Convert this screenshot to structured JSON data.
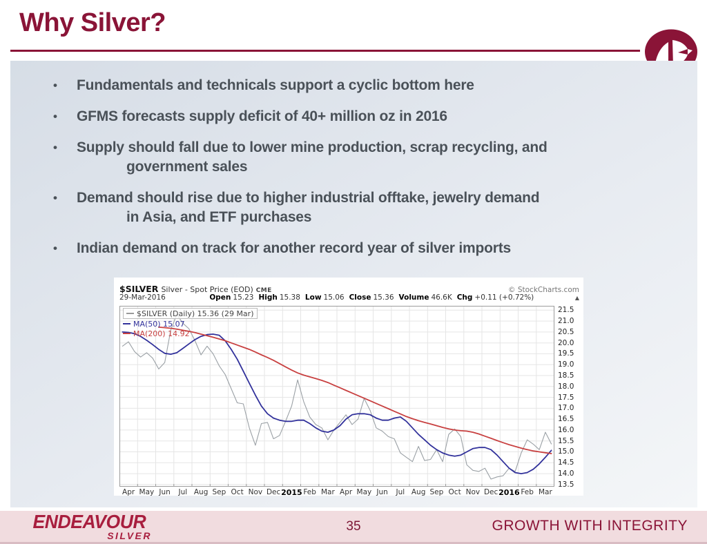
{
  "slide": {
    "title": "Why Silver?",
    "bullets": [
      "Fundamentals and technicals support a cyclic bottom here",
      "GFMS forecasts supply deficit of 40+ million oz in 2016",
      "Supply should fall due to lower mine production, scrap recycling, and\ngovernment sales",
      "Demand should rise due to higher industrial offtake, jewelry demand\nin Asia, and ETF purchases",
      "Indian demand on track for another record year of silver imports"
    ],
    "bullet_glyph": "•",
    "page_number": "35",
    "tagline": "GROWTH WITH INTEGRITY",
    "brand": {
      "line1": "ENDEAVOUR",
      "line2": "SILVER"
    }
  },
  "colors": {
    "maroon": "#8a1437",
    "brand_crimson": "#a81e3e",
    "bullet_text": "#4a5158",
    "footer_pink": "#f1dcdf",
    "series_gray": "#9aa0a5",
    "series_blue": "#31319b",
    "series_red": "#c84040"
  },
  "chart": {
    "symbol": "$SILVER",
    "description": "Silver - Spot Price (EOD)",
    "exchange": "CME",
    "source": "© StockCharts.com",
    "date": "29-Mar-2016",
    "stats": [
      {
        "label": "Open",
        "value": "15.23"
      },
      {
        "label": "High",
        "value": "15.38"
      },
      {
        "label": "Low",
        "value": "15.06"
      },
      {
        "label": "Close",
        "value": "15.36"
      },
      {
        "label": "Volume",
        "value": "46.6K"
      },
      {
        "label": "Chg",
        "value": "+0.11 (+0.72%)"
      }
    ],
    "change_direction_icon": "▲",
    "legend": [
      {
        "label": "$SILVER (Daily) 15.36 (29 Mar)",
        "color": "#444444",
        "dash": "#999999",
        "boxed": true
      },
      {
        "label": "MA(50) 15.07",
        "color": "#31319b",
        "dash": "#31319b",
        "boxed": false
      },
      {
        "label": "MA(200) 14.92",
        "color": "#c84040",
        "dash": "#c84040",
        "boxed": false
      }
    ]
  },
  "chart_data": {
    "type": "line",
    "title": "$SILVER Silver - Spot Price (EOD) CME",
    "x_categories": [
      "Apr",
      "May",
      "Jun",
      "Jul",
      "Aug",
      "Sep",
      "Oct",
      "Nov",
      "Dec",
      "2015",
      "Feb",
      "Mar",
      "Apr",
      "May",
      "Jun",
      "Jul",
      "Aug",
      "Sep",
      "Oct",
      "Nov",
      "Dec",
      "2016",
      "Feb",
      "Mar"
    ],
    "points_per_month": 3,
    "ylim": [
      13.4,
      21.7
    ],
    "y_ticks": [
      21.5,
      21.0,
      20.5,
      20.0,
      19.5,
      19.0,
      18.5,
      18.0,
      17.5,
      17.0,
      16.5,
      16.0,
      15.5,
      15.0,
      14.5,
      14.0,
      13.5
    ],
    "grid": true,
    "legend_position": "top-left",
    "series": [
      {
        "name": "$SILVER (Daily)",
        "color": "#9aa0a5",
        "width": 1.1,
        "values": [
          19.85,
          20.05,
          19.6,
          19.35,
          19.55,
          19.3,
          18.8,
          19.1,
          20.6,
          21.3,
          20.9,
          20.65,
          20.1,
          19.45,
          19.85,
          19.5,
          18.95,
          18.55,
          17.9,
          17.25,
          17.2,
          16.1,
          15.3,
          16.3,
          16.35,
          15.6,
          15.75,
          16.4,
          17.1,
          18.3,
          17.3,
          16.6,
          16.25,
          16.1,
          15.55,
          16.0,
          16.35,
          16.7,
          16.25,
          16.5,
          17.45,
          16.9,
          16.1,
          15.95,
          15.7,
          15.6,
          14.95,
          14.75,
          14.55,
          15.25,
          14.6,
          14.65,
          15.1,
          14.55,
          15.8,
          16.05,
          15.7,
          14.4,
          14.15,
          14.1,
          14.25,
          13.75,
          13.85,
          13.9,
          14.25,
          14.1,
          14.95,
          15.55,
          15.35,
          15.1,
          15.9,
          15.36
        ]
      },
      {
        "name": "MA(50)",
        "color": "#31319b",
        "width": 1.8,
        "values": [
          20.5,
          20.48,
          20.42,
          20.3,
          20.12,
          19.92,
          19.7,
          19.52,
          19.48,
          19.55,
          19.75,
          19.95,
          20.15,
          20.3,
          20.38,
          20.4,
          20.35,
          20.1,
          19.7,
          19.25,
          18.7,
          18.15,
          17.6,
          17.1,
          16.75,
          16.55,
          16.45,
          16.4,
          16.4,
          16.45,
          16.45,
          16.3,
          16.1,
          15.95,
          15.9,
          16.0,
          16.2,
          16.5,
          16.7,
          16.75,
          16.75,
          16.7,
          16.55,
          16.45,
          16.45,
          16.55,
          16.6,
          16.4,
          16.1,
          15.8,
          15.55,
          15.3,
          15.1,
          14.95,
          14.85,
          14.8,
          14.85,
          15.0,
          15.15,
          15.2,
          15.2,
          15.1,
          14.85,
          14.55,
          14.25,
          14.05,
          14.0,
          14.05,
          14.2,
          14.45,
          14.75,
          15.07
        ]
      },
      {
        "name": "MA(200)",
        "color": "#c84040",
        "width": 1.8,
        "values": [
          null,
          null,
          null,
          null,
          null,
          null,
          20.72,
          20.7,
          20.67,
          20.63,
          20.58,
          20.53,
          20.47,
          20.4,
          20.33,
          20.26,
          20.18,
          20.1,
          20.0,
          19.9,
          19.8,
          19.7,
          19.58,
          19.45,
          19.33,
          19.2,
          19.05,
          18.9,
          18.75,
          18.62,
          18.52,
          18.44,
          18.36,
          18.28,
          18.18,
          18.06,
          17.94,
          17.82,
          17.7,
          17.58,
          17.46,
          17.34,
          17.22,
          17.1,
          16.98,
          16.86,
          16.74,
          16.62,
          16.52,
          16.43,
          16.35,
          16.28,
          16.2,
          16.12,
          16.05,
          16.0,
          15.97,
          15.95,
          15.9,
          15.82,
          15.72,
          15.62,
          15.52,
          15.42,
          15.33,
          15.25,
          15.17,
          15.1,
          15.04,
          15.0,
          14.96,
          14.92
        ]
      }
    ]
  }
}
